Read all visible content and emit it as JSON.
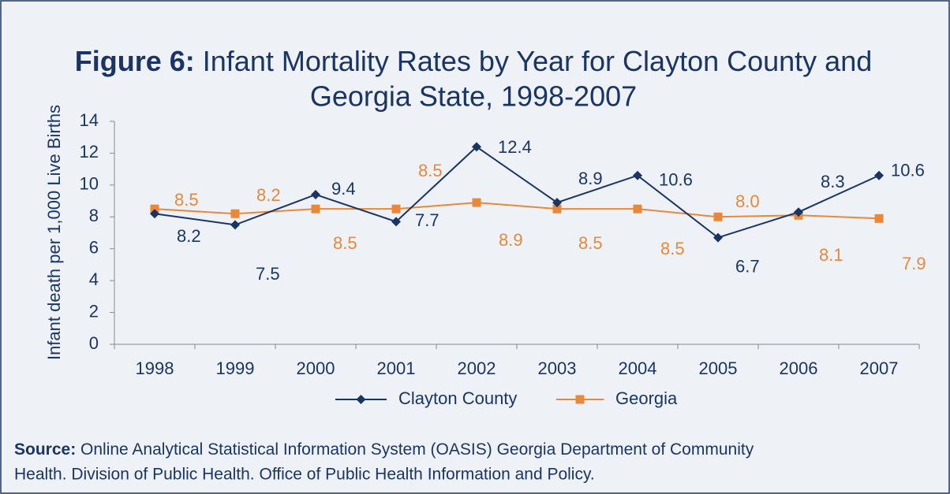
{
  "chart_data": {
    "type": "line",
    "title_label": "Figure 6:",
    "title": [
      "Infant Mortality Rates by Year for Clayton County and",
      "Georgia State, 1998-2007"
    ],
    "y_label": "Infant death per 1,000 Live Births",
    "categories": [
      "1998",
      "1999",
      "2000",
      "2001",
      "2002",
      "2003",
      "2004",
      "2005",
      "2006",
      "2007"
    ],
    "series": [
      {
        "name": "Clayton County",
        "color": "#1a3563",
        "marker": "diamond",
        "values": [
          8.2,
          7.5,
          9.4,
          7.7,
          12.4,
          8.9,
          10.6,
          6.7,
          8.3,
          10.6
        ]
      },
      {
        "name": "Georgia",
        "color": "#e8883a",
        "marker": "square",
        "values": [
          8.5,
          8.2,
          8.5,
          8.5,
          8.9,
          8.5,
          8.5,
          8.0,
          8.1,
          7.9
        ],
        "value_labels": [
          "8.5",
          "8.2",
          "8.5",
          "8.5",
          "8.9",
          "8.5",
          "8.5",
          "8.0",
          "8.1",
          "7.9"
        ]
      }
    ],
    "ylim": [
      0,
      14
    ],
    "yticks": [
      0,
      2,
      4,
      6,
      8,
      10,
      12,
      14
    ],
    "legend": "bottom",
    "source": {
      "label": "Source:",
      "lines": [
        "Online Analytical Statistical Information System (OASIS) Georgia Department of Community",
        "Health. Division of Public Health. Office of Public Health Information and Policy."
      ]
    }
  }
}
